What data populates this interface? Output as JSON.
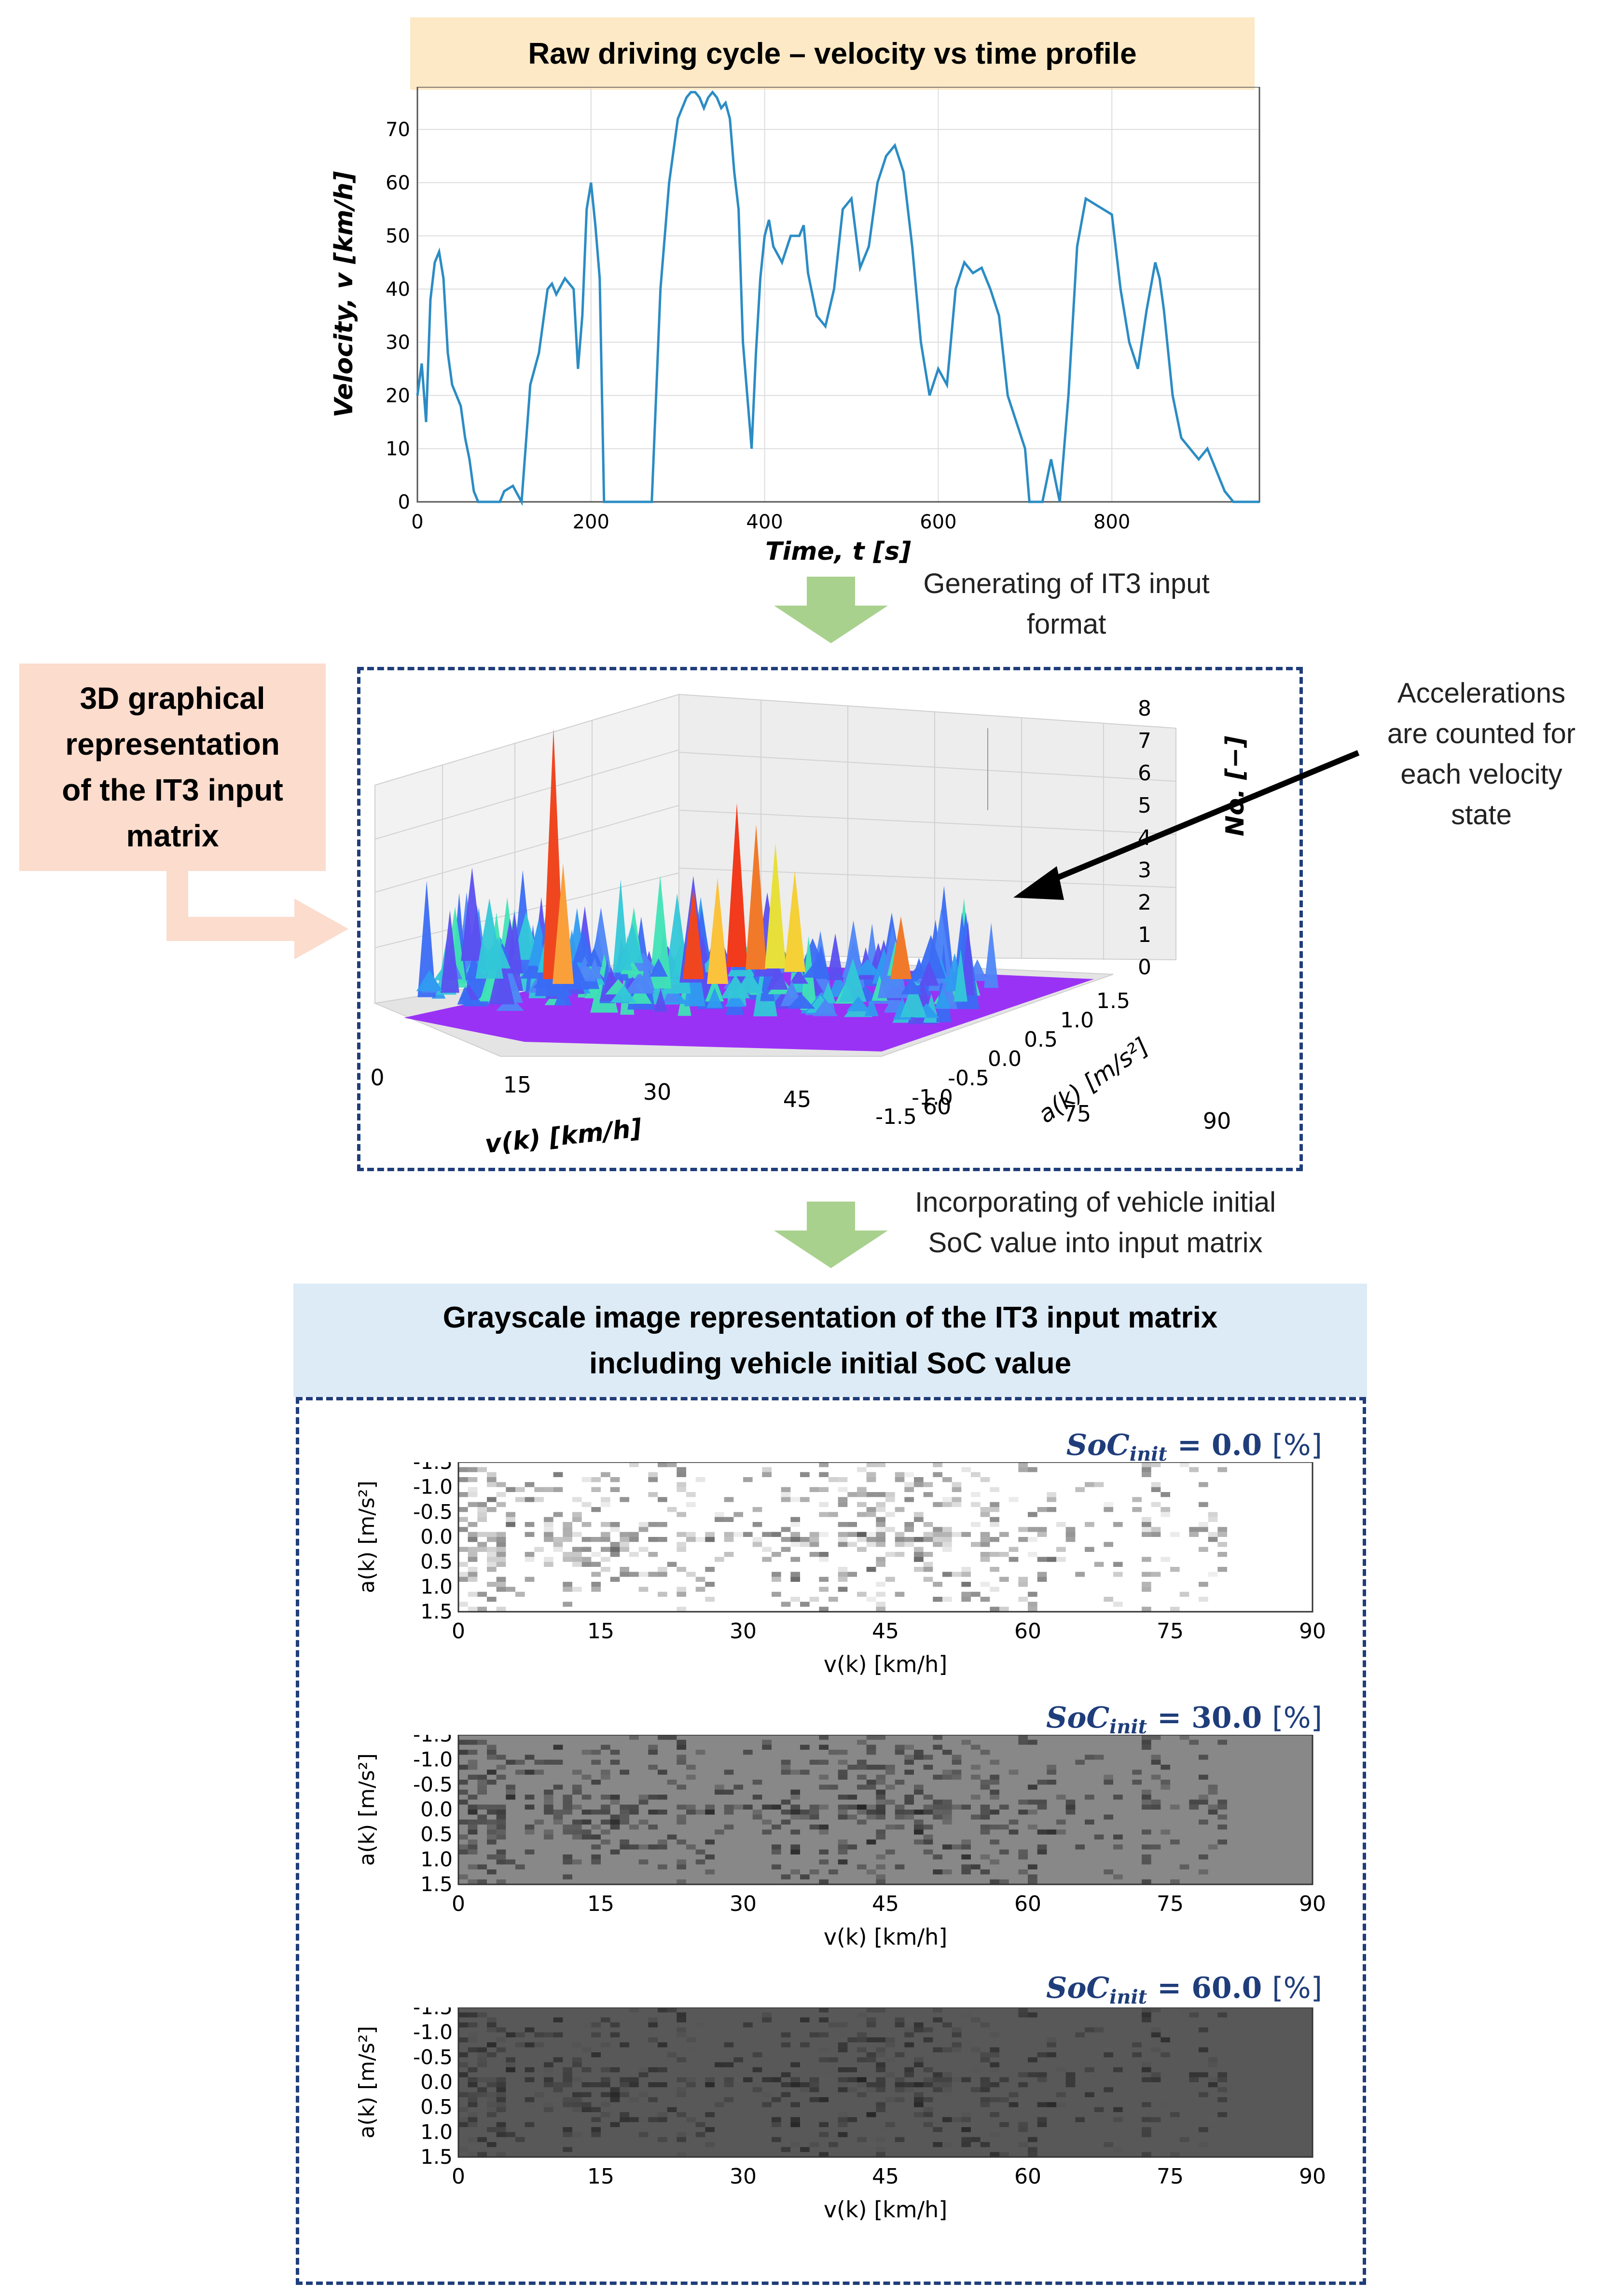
{
  "velocity_header": "Raw driving cycle – velocity vs time profile",
  "arrow1_label": [
    "Generating of IT3 input",
    "format"
  ],
  "graphical_label": [
    "3D graphical",
    "representation",
    "of the IT3 input",
    "matrix"
  ],
  "acc_note": [
    "Accelerations",
    "are counted for",
    "each velocity",
    "state"
  ],
  "arrow2_label": [
    "Incorporating of vehicle initial",
    "SoC value into input matrix"
  ],
  "grayscale_header": [
    "Grayscale image representation of the IT3 input matrix",
    "including vehicle initial SoC value"
  ],
  "plot3d": {
    "v_ticks": [
      "0",
      "15",
      "30",
      "45",
      "60",
      "75",
      "90"
    ],
    "a_ticks": [
      "1.5",
      "1.0",
      "0.5",
      "0.0",
      "-0.5",
      "-1.0",
      "-1.5"
    ],
    "z_ticks": [
      "0",
      "1",
      "2",
      "3",
      "4",
      "5",
      "6",
      "7",
      "8"
    ],
    "xlabel": "v(k) [km/h]",
    "ylabel": "a(k) [m/s²]",
    "zlabel": "No. [−]"
  },
  "heatmaps": [
    {
      "soc_label": "SoC",
      "soc_sub": "init",
      "soc_value": "= 0.0",
      "soc_unit": "[%]",
      "bg": "#ffffff"
    },
    {
      "soc_label": "SoC",
      "soc_sub": "init",
      "soc_value": "= 30.0",
      "soc_unit": "[%]",
      "bg": "#888888"
    },
    {
      "soc_label": "SoC",
      "soc_sub": "init",
      "soc_value": "= 60.0",
      "soc_unit": "[%]",
      "bg": "#585858"
    }
  ],
  "heatmap_axes": {
    "y_ticks": [
      "-1.5",
      "-1.0",
      "-0.5",
      "0.0",
      "0.5",
      "1.0",
      "1.5"
    ],
    "x_ticks": [
      "0",
      "15",
      "30",
      "45",
      "60",
      "75",
      "90"
    ],
    "xlabel": "v(k) [km/h]",
    "ylabel": "a(k) [m/s²]"
  },
  "chart_data": {
    "type": "line",
    "title": "Raw driving cycle – velocity vs time profile",
    "xlabel": "Time, t [s]",
    "ylabel": "Velocity, v [km/h]",
    "xlim": [
      0,
      970
    ],
    "ylim": [
      0,
      78
    ],
    "x_ticks": [
      0,
      200,
      400,
      600,
      800
    ],
    "y_ticks": [
      0,
      10,
      20,
      30,
      40,
      50,
      60,
      70
    ],
    "grid": true,
    "color": "#2b8cc4",
    "x": [
      0,
      5,
      10,
      15,
      20,
      25,
      30,
      35,
      40,
      45,
      50,
      55,
      60,
      65,
      70,
      75,
      80,
      85,
      90,
      95,
      100,
      110,
      120,
      130,
      140,
      150,
      155,
      160,
      170,
      180,
      185,
      190,
      195,
      200,
      205,
      210,
      215,
      220,
      225,
      230,
      235,
      240,
      250,
      260,
      265,
      270,
      275,
      280,
      290,
      300,
      305,
      310,
      315,
      320,
      325,
      330,
      335,
      340,
      345,
      350,
      355,
      360,
      365,
      370,
      375,
      380,
      385,
      390,
      395,
      400,
      405,
      410,
      420,
      430,
      440,
      445,
      450,
      460,
      470,
      480,
      490,
      500,
      510,
      520,
      530,
      540,
      550,
      560,
      570,
      580,
      590,
      600,
      610,
      620,
      630,
      640,
      650,
      660,
      670,
      680,
      690,
      700,
      705,
      710,
      720,
      730,
      740,
      750,
      760,
      770,
      780,
      790,
      800,
      810,
      820,
      830,
      840,
      850,
      855,
      860,
      870,
      880,
      890,
      900,
      910,
      920,
      930,
      940,
      950,
      960,
      970
    ],
    "y": [
      20,
      26,
      15,
      38,
      45,
      47,
      42,
      28,
      22,
      20,
      18,
      12,
      8,
      2,
      0,
      0,
      0,
      0,
      0,
      0,
      2,
      3,
      0,
      22,
      28,
      40,
      41,
      39,
      42,
      40,
      25,
      35,
      55,
      60,
      52,
      42,
      0,
      0,
      0,
      0,
      0,
      0,
      0,
      0,
      0,
      0,
      20,
      40,
      60,
      72,
      74,
      76,
      77,
      77,
      76,
      74,
      76,
      77,
      76,
      74,
      75,
      72,
      62,
      55,
      30,
      20,
      10,
      28,
      42,
      50,
      53,
      48,
      45,
      50,
      50,
      52,
      43,
      35,
      33,
      40,
      55,
      57,
      44,
      48,
      60,
      65,
      67,
      62,
      48,
      30,
      20,
      25,
      22,
      40,
      45,
      43,
      44,
      40,
      35,
      20,
      15,
      10,
      0,
      0,
      0,
      8,
      0,
      20,
      48,
      57,
      56,
      55,
      54,
      40,
      30,
      25,
      36,
      45,
      42,
      36,
      20,
      12,
      10,
      8,
      10,
      6,
      2,
      0,
      0,
      0,
      0
    ],
    "series": [
      {
        "name": "velocity",
        "note": "see x/y"
      }
    ]
  }
}
